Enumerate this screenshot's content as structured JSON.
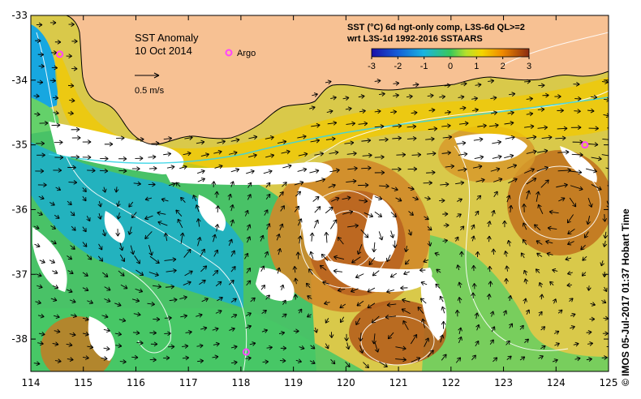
{
  "map": {
    "title": "SST Anomaly",
    "date": "10 Oct 2014",
    "header_line1": "SST (°C) 6d ngt-only comp, L3S-6d QL>=2",
    "header_line2": "wrt L3S-1d 1992-2016 SSTAARS",
    "velocity_scale_label": "0.5 m/s",
    "argo_label": "Argo",
    "credit": "© IMOS 05-Jul-2017 01:37 Hobart Time",
    "x_ticks": [
      "114",
      "115",
      "116",
      "117",
      "118",
      "119",
      "120",
      "121",
      "122",
      "123",
      "124",
      "125"
    ],
    "y_ticks": [
      "-33",
      "-34",
      "-35",
      "-36",
      "-37",
      "-38"
    ],
    "colorbar_ticks": [
      "-3",
      "-2",
      "-1",
      "0",
      "1",
      "2",
      "3"
    ],
    "colors": {
      "land": "#f7c193",
      "missing": "#ffffff",
      "cold": "#1aa7d6",
      "mid": "#7fd34a",
      "warm": "#f2c800",
      "hot": "#b5601d",
      "argo": "#ff44ff"
    },
    "argo_floats": [
      {
        "lon": 114.55,
        "lat": -33.6
      },
      {
        "lon": 124.55,
        "lat": -35.0
      },
      {
        "lon": 118.1,
        "lat": -38.2
      }
    ]
  }
}
